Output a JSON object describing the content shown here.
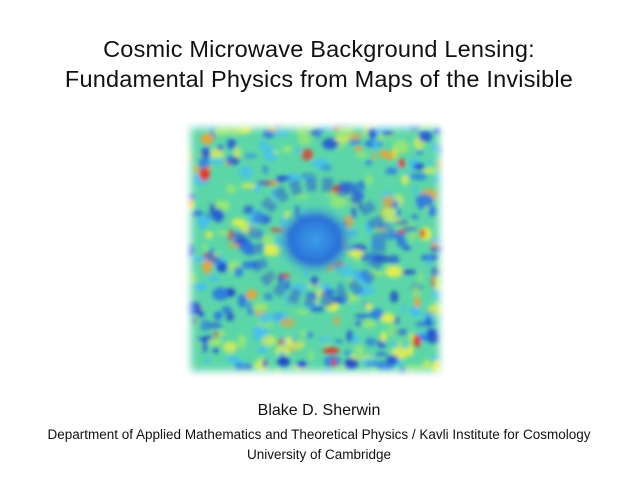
{
  "title": {
    "line1": "Cosmic Microwave Background Lensing:",
    "line2": "Fundamental Physics from Maps of the Invisible"
  },
  "author": "Blake D. Sherwin",
  "affiliation": {
    "department": "Department of Applied Mathematics and Theoretical Physics / Kavli Institute for Cosmology",
    "university": "University of Cambridge"
  }
}
